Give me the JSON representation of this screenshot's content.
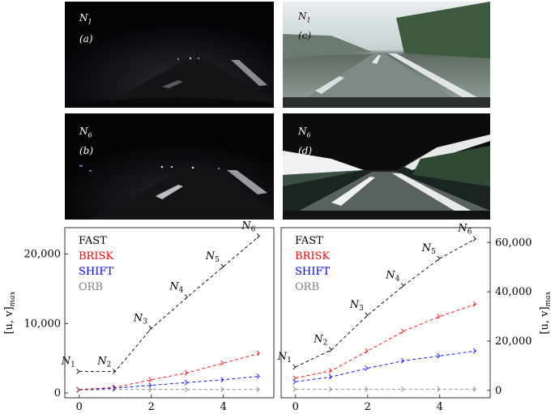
{
  "photos": [
    {
      "id": "a",
      "node": "N",
      "node_sub": "1",
      "tag": "(a)",
      "style": "dark-night"
    },
    {
      "id": "c",
      "node": "N",
      "node_sub": "1",
      "tag": "(c)",
      "style": "enhanced-day"
    },
    {
      "id": "b",
      "node": "N",
      "node_sub": "6",
      "tag": "(b)",
      "style": "dark-night"
    },
    {
      "id": "d",
      "node": "N",
      "node_sub": "6",
      "tag": "(d)",
      "style": "enhanced-day"
    }
  ],
  "chart_data": [
    {
      "type": "line",
      "title": "",
      "xlabel": "",
      "ylabel": "[u, v]max",
      "ylabel_main": "[u, v]",
      "ylabel_sub": "max",
      "ylabel_side": "left",
      "xlim": [
        -0.4,
        5.4
      ],
      "ylim": [
        -700,
        23800
      ],
      "xticks": [
        0,
        2,
        4
      ],
      "yticks": [
        0,
        10000,
        20000
      ],
      "ytick_labels": [
        "0",
        "10,000",
        "20,000"
      ],
      "x": [
        0,
        1,
        2,
        3,
        4,
        5
      ],
      "series": [
        {
          "name": "FAST",
          "color": "#000000",
          "values": [
            3100,
            3100,
            9300,
            13800,
            18200,
            22600
          ]
        },
        {
          "name": "BRISK",
          "color": "#ff0000",
          "values": [
            500,
            800,
            1900,
            2900,
            4300,
            5700
          ]
        },
        {
          "name": "SHIFT",
          "color": "#0000ff",
          "values": [
            400,
            700,
            1100,
            1500,
            1900,
            2400
          ]
        },
        {
          "name": "ORB",
          "color": "#808080",
          "values": [
            400,
            500,
            500,
            500,
            500,
            500
          ]
        }
      ],
      "point_labels": [
        {
          "text": "N",
          "sub": "1",
          "series": 0,
          "index": 0
        },
        {
          "text": "N",
          "sub": "2",
          "series": 0,
          "index": 1
        },
        {
          "text": "N",
          "sub": "3",
          "series": 0,
          "index": 2
        },
        {
          "text": "N",
          "sub": "4",
          "series": 0,
          "index": 3
        },
        {
          "text": "N",
          "sub": "5",
          "series": 0,
          "index": 4
        },
        {
          "text": "N",
          "sub": "6",
          "series": 0,
          "index": 5
        }
      ],
      "legend": "top-left",
      "grid": false
    },
    {
      "type": "line",
      "title": "",
      "xlabel": "",
      "ylabel": "[u, v]max",
      "ylabel_main": "[u, v]",
      "ylabel_sub": "max",
      "ylabel_side": "right",
      "xlim": [
        -0.4,
        5.4
      ],
      "ylim": [
        -3000,
        66000
      ],
      "xticks": [
        0,
        2,
        4
      ],
      "yticks": [
        0,
        20000,
        40000,
        60000
      ],
      "ytick_labels": [
        "0",
        "20,000",
        "40,000",
        "60,000"
      ],
      "x": [
        0,
        1,
        2,
        3,
        4,
        5
      ],
      "series": [
        {
          "name": "FAST",
          "color": "#000000",
          "values": [
            9500,
            16500,
            30500,
            42500,
            53500,
            61500
          ]
        },
        {
          "name": "BRISK",
          "color": "#ff0000",
          "values": [
            5000,
            8000,
            16000,
            24000,
            30000,
            35000
          ]
        },
        {
          "name": "SHIFT",
          "color": "#0000ff",
          "values": [
            3500,
            5500,
            9000,
            12000,
            14000,
            16000
          ]
        },
        {
          "name": "ORB",
          "color": "#808080",
          "values": [
            500,
            500,
            500,
            500,
            500,
            500
          ]
        }
      ],
      "point_labels": [
        {
          "text": "N",
          "sub": "1",
          "series": 0,
          "index": 0
        },
        {
          "text": "N",
          "sub": "2",
          "series": 0,
          "index": 1
        },
        {
          "text": "N",
          "sub": "3",
          "series": 0,
          "index": 2
        },
        {
          "text": "N",
          "sub": "4",
          "series": 0,
          "index": 3
        },
        {
          "text": "N",
          "sub": "5",
          "series": 0,
          "index": 4
        },
        {
          "text": "N",
          "sub": "6",
          "series": 0,
          "index": 5
        }
      ],
      "legend": "top-left",
      "grid": false
    }
  ]
}
